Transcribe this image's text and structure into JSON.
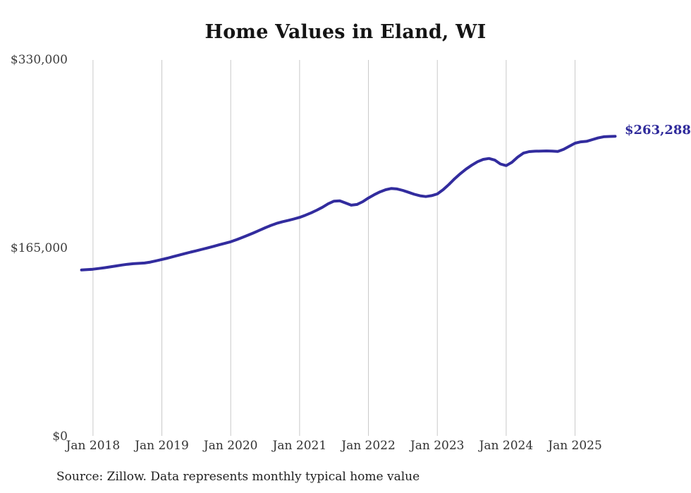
{
  "chart_data": {
    "type": "line",
    "title": "Home Values in Eland, WI",
    "series_name": "Monthly typical home value",
    "unit": "USD",
    "cadence": "monthly",
    "x_start_label": "Nov 2017",
    "x_end_label": "Aug 2025",
    "x_tick_labels": [
      "Jan 2018",
      "Jan 2019",
      "Jan 2020",
      "Jan 2021",
      "Jan 2022",
      "Jan 2023",
      "Jan 2024",
      "Jan 2025"
    ],
    "y_tick_labels": [
      "$0",
      "$165,000",
      "$330,000"
    ],
    "y_tick_values": [
      0,
      165000,
      330000
    ],
    "ylim": [
      0,
      330000
    ],
    "grid": "vertical-only",
    "legend": "none",
    "line_color": "#322c9e",
    "gridline_color": "#c9c9c9",
    "end_label": "$263,288",
    "last_value": 263288,
    "values": [
      146300,
      146600,
      147000,
      147600,
      148300,
      149000,
      149800,
      150600,
      151300,
      151800,
      152100,
      152400,
      153200,
      154300,
      155500,
      156700,
      158000,
      159300,
      160600,
      161900,
      163100,
      164400,
      165700,
      167000,
      168300,
      169700,
      171000,
      172800,
      174700,
      176700,
      178800,
      181000,
      183200,
      185300,
      187100,
      188500,
      189600,
      190900,
      192300,
      194200,
      196300,
      198600,
      201200,
      204300,
      206500,
      206800,
      204900,
      203000,
      203600,
      206000,
      209300,
      212100,
      214600,
      216500,
      217600,
      217200,
      215900,
      214200,
      212500,
      211200,
      210500,
      211300,
      212800,
      216500,
      221000,
      226000,
      230500,
      234500,
      238000,
      241000,
      243000,
      243800,
      242500,
      239000,
      237600,
      240500,
      245000,
      248500,
      249800,
      250200,
      250300,
      250400,
      250300,
      250000,
      251800,
      254500,
      257200,
      258400,
      258800,
      260300,
      261800,
      262800,
      263100,
      263288
    ]
  },
  "source": {
    "text": "Source: Zillow. Data represents monthly typical home value"
  }
}
